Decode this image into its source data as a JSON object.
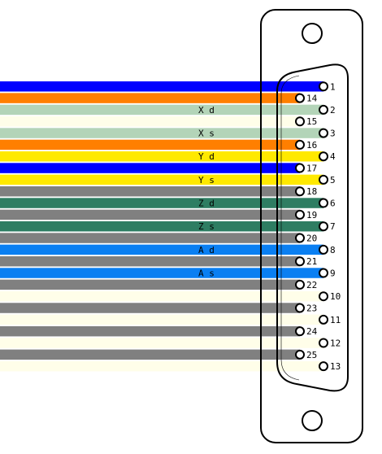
{
  "wires": [
    {
      "pin": "1",
      "color": "#0000ff",
      "label": ""
    },
    {
      "pin": "14",
      "color": "#ff7f00",
      "label": ""
    },
    {
      "pin": "2",
      "color": "#b3d4b8",
      "label": "X d"
    },
    {
      "pin": "15",
      "color": "#fffee9",
      "label": ""
    },
    {
      "pin": "3",
      "color": "#b3d4b8",
      "label": "X s"
    },
    {
      "pin": "16",
      "color": "#ff7f00",
      "label": ""
    },
    {
      "pin": "4",
      "color": "#ffe900",
      "label": "Y d"
    },
    {
      "pin": "17",
      "color": "#0000ff",
      "label": ""
    },
    {
      "pin": "5",
      "color": "#ffe900",
      "label": "Y s"
    },
    {
      "pin": "18",
      "color": "#808080",
      "label": ""
    },
    {
      "pin": "6",
      "color": "#2e7d62",
      "label": "Z d"
    },
    {
      "pin": "19",
      "color": "#808080",
      "label": ""
    },
    {
      "pin": "7",
      "color": "#2e7d62",
      "label": "Z s"
    },
    {
      "pin": "20",
      "color": "#808080",
      "label": ""
    },
    {
      "pin": "8",
      "color": "#0a7ff2",
      "label": "A d"
    },
    {
      "pin": "21",
      "color": "#808080",
      "label": ""
    },
    {
      "pin": "9",
      "color": "#0a7ff2",
      "label": "A s"
    },
    {
      "pin": "22",
      "color": "#808080",
      "label": ""
    },
    {
      "pin": "10",
      "color": "#fffee9",
      "label": ""
    },
    {
      "pin": "23",
      "color": "#808080",
      "label": ""
    },
    {
      "pin": "11",
      "color": "#fffee9",
      "label": ""
    },
    {
      "pin": "24",
      "color": "#808080",
      "label": ""
    },
    {
      "pin": "12",
      "color": "#fffee9",
      "label": ""
    },
    {
      "pin": "25",
      "color": "#808080",
      "label": ""
    },
    {
      "pin": "13",
      "color": "#fffee9",
      "label": ""
    }
  ]
}
